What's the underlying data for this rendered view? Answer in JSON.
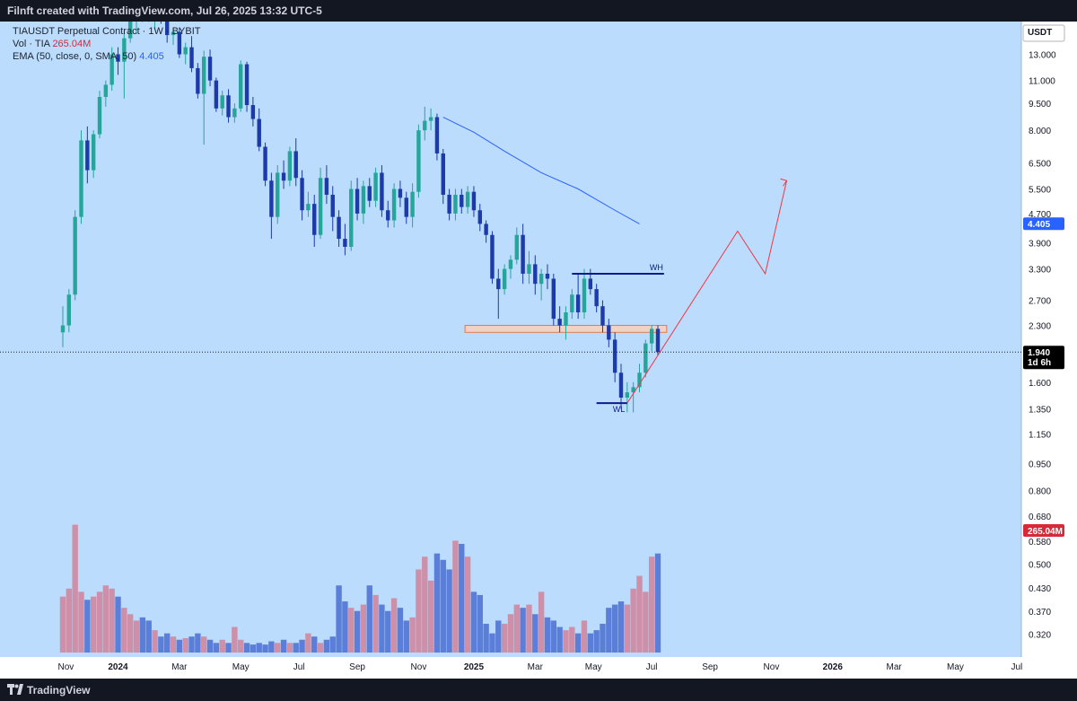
{
  "header": {
    "caption": "Filnft created with TradingView.com, Jul 26, 2025 13:32 UTC-5"
  },
  "legend": {
    "symbol_line": "TIAUSDT Perpetual Contract · 1W · BYBIT",
    "vol_label": "Vol · TIA",
    "vol_value": "265.04M",
    "ema_label": "EMA (50, close, 0, SMA, 50)",
    "ema_value": "4.405"
  },
  "footer": {
    "brand": "TradingView"
  },
  "colors": {
    "background": "#bbdcfc",
    "up_candle": "#26a69a",
    "down_candle": "#1c3aa9",
    "volume_up": "#ce8fa8",
    "volume_down": "#5b7fd8",
    "ema": "#2962ff",
    "projection": "#f23645",
    "level_line": "#0d1a8c",
    "zone_fill": "#f3d2c6",
    "zone_border": "#e07a4f",
    "axis_bg": "#ffffff",
    "last_price_bg": "#000000",
    "volume_badge": "#d6293a",
    "ema_badge": "#2962ff"
  },
  "chart_data": {
    "type": "candlestick",
    "symbol": "TIAUSDT Perpetual Contract",
    "interval": "1W",
    "exchange": "BYBIT",
    "currency": "USDT",
    "y_scale": "log",
    "ylim": [
      0.28,
      17.0
    ],
    "price_ticks": [
      "13.000",
      "11.000",
      "9.500",
      "8.000",
      "6.500",
      "5.500",
      "4.700",
      "3.900",
      "3.300",
      "2.700",
      "2.300",
      "1.600",
      "1.350",
      "1.150",
      "0.950",
      "0.800",
      "0.680",
      "0.580",
      "0.500",
      "0.430",
      "0.370",
      "0.320"
    ],
    "x_ticks": [
      "Nov",
      "2024",
      "Mar",
      "May",
      "Jul",
      "Sep",
      "Nov",
      "2025",
      "Mar",
      "May",
      "Jul",
      "Sep",
      "Nov",
      "2026",
      "Mar",
      "May",
      "Jul"
    ],
    "bars": [
      {
        "o": 2.2,
        "h": 2.6,
        "l": 2.0,
        "c": 2.3
      },
      {
        "o": 2.3,
        "h": 2.9,
        "l": 2.2,
        "c": 2.8
      },
      {
        "o": 2.8,
        "h": 4.8,
        "l": 2.7,
        "c": 4.6
      },
      {
        "o": 4.6,
        "h": 8.0,
        "l": 4.4,
        "c": 7.5
      },
      {
        "o": 7.5,
        "h": 8.2,
        "l": 5.7,
        "c": 6.2
      },
      {
        "o": 6.2,
        "h": 8.0,
        "l": 5.9,
        "c": 7.8
      },
      {
        "o": 7.8,
        "h": 10.3,
        "l": 7.6,
        "c": 9.9
      },
      {
        "o": 9.9,
        "h": 11.0,
        "l": 9.3,
        "c": 10.7
      },
      {
        "o": 10.7,
        "h": 13.6,
        "l": 10.3,
        "c": 13.0
      },
      {
        "o": 13.0,
        "h": 13.6,
        "l": 11.4,
        "c": 12.4
      },
      {
        "o": 12.4,
        "h": 15.0,
        "l": 9.8,
        "c": 14.4
      },
      {
        "o": 14.4,
        "h": 17.0,
        "l": 14.0,
        "c": 16.6
      },
      {
        "o": 16.6,
        "h": 17.2,
        "l": 14.8,
        "c": 16.9
      },
      {
        "o": 16.9,
        "h": 17.2,
        "l": 16.0,
        "c": 16.7
      },
      {
        "o": 16.7,
        "h": 17.2,
        "l": 16.0,
        "c": 16.3
      },
      {
        "o": 16.3,
        "h": 17.0,
        "l": 15.3,
        "c": 16.8
      },
      {
        "o": 16.8,
        "h": 17.2,
        "l": 15.8,
        "c": 16.4
      },
      {
        "o": 16.4,
        "h": 17.0,
        "l": 14.0,
        "c": 14.7
      },
      {
        "o": 14.7,
        "h": 15.3,
        "l": 13.8,
        "c": 15.0
      },
      {
        "o": 15.0,
        "h": 15.4,
        "l": 12.7,
        "c": 13.0
      },
      {
        "o": 13.0,
        "h": 14.0,
        "l": 12.2,
        "c": 13.6
      },
      {
        "o": 13.6,
        "h": 14.6,
        "l": 11.6,
        "c": 11.9
      },
      {
        "o": 11.9,
        "h": 12.3,
        "l": 9.8,
        "c": 10.1
      },
      {
        "o": 10.1,
        "h": 13.3,
        "l": 7.3,
        "c": 12.8
      },
      {
        "o": 12.8,
        "h": 13.4,
        "l": 10.6,
        "c": 11.0
      },
      {
        "o": 11.0,
        "h": 11.2,
        "l": 9.0,
        "c": 9.2
      },
      {
        "o": 9.2,
        "h": 10.3,
        "l": 8.8,
        "c": 10.0
      },
      {
        "o": 10.0,
        "h": 10.4,
        "l": 8.4,
        "c": 8.7
      },
      {
        "o": 8.7,
        "h": 9.5,
        "l": 8.4,
        "c": 9.2
      },
      {
        "o": 9.2,
        "h": 12.5,
        "l": 9.0,
        "c": 12.2
      },
      {
        "o": 12.2,
        "h": 12.4,
        "l": 9.0,
        "c": 9.4
      },
      {
        "o": 9.4,
        "h": 9.9,
        "l": 8.2,
        "c": 8.6
      },
      {
        "o": 8.6,
        "h": 9.2,
        "l": 7.0,
        "c": 7.2
      },
      {
        "o": 7.2,
        "h": 7.4,
        "l": 5.6,
        "c": 5.8
      },
      {
        "o": 5.8,
        "h": 6.1,
        "l": 4.0,
        "c": 4.6
      },
      {
        "o": 4.6,
        "h": 6.4,
        "l": 4.4,
        "c": 6.1
      },
      {
        "o": 6.1,
        "h": 6.6,
        "l": 5.5,
        "c": 5.8
      },
      {
        "o": 5.8,
        "h": 7.2,
        "l": 5.6,
        "c": 7.0
      },
      {
        "o": 7.0,
        "h": 7.6,
        "l": 5.6,
        "c": 5.9
      },
      {
        "o": 5.9,
        "h": 6.2,
        "l": 4.5,
        "c": 4.8
      },
      {
        "o": 4.8,
        "h": 5.4,
        "l": 4.6,
        "c": 5.0
      },
      {
        "o": 5.0,
        "h": 5.3,
        "l": 3.8,
        "c": 4.1
      },
      {
        "o": 4.1,
        "h": 6.3,
        "l": 4.0,
        "c": 5.9
      },
      {
        "o": 5.9,
        "h": 6.4,
        "l": 5.0,
        "c": 5.3
      },
      {
        "o": 5.3,
        "h": 5.6,
        "l": 4.2,
        "c": 4.6
      },
      {
        "o": 4.6,
        "h": 4.8,
        "l": 3.8,
        "c": 4.0
      },
      {
        "o": 4.0,
        "h": 4.4,
        "l": 3.6,
        "c": 3.8
      },
      {
        "o": 3.8,
        "h": 5.8,
        "l": 3.7,
        "c": 5.5
      },
      {
        "o": 5.5,
        "h": 5.9,
        "l": 4.5,
        "c": 4.7
      },
      {
        "o": 4.7,
        "h": 5.8,
        "l": 4.4,
        "c": 5.6
      },
      {
        "o": 5.6,
        "h": 5.9,
        "l": 4.9,
        "c": 5.1
      },
      {
        "o": 5.1,
        "h": 6.3,
        "l": 4.9,
        "c": 6.1
      },
      {
        "o": 6.1,
        "h": 6.4,
        "l": 4.6,
        "c": 4.8
      },
      {
        "o": 4.8,
        "h": 5.1,
        "l": 4.3,
        "c": 4.5
      },
      {
        "o": 4.5,
        "h": 5.7,
        "l": 4.3,
        "c": 5.5
      },
      {
        "o": 5.5,
        "h": 5.8,
        "l": 4.9,
        "c": 5.2
      },
      {
        "o": 5.2,
        "h": 5.4,
        "l": 4.4,
        "c": 4.6
      },
      {
        "o": 4.6,
        "h": 5.7,
        "l": 4.3,
        "c": 5.4
      },
      {
        "o": 5.4,
        "h": 8.3,
        "l": 5.2,
        "c": 8.0
      },
      {
        "o": 8.0,
        "h": 9.3,
        "l": 7.5,
        "c": 8.5
      },
      {
        "o": 8.5,
        "h": 9.2,
        "l": 8.0,
        "c": 8.7
      },
      {
        "o": 8.7,
        "h": 8.9,
        "l": 6.6,
        "c": 6.9
      },
      {
        "o": 6.9,
        "h": 7.1,
        "l": 5.0,
        "c": 5.3
      },
      {
        "o": 5.3,
        "h": 5.5,
        "l": 4.5,
        "c": 4.7
      },
      {
        "o": 4.7,
        "h": 5.5,
        "l": 4.5,
        "c": 5.3
      },
      {
        "o": 5.3,
        "h": 5.5,
        "l": 4.7,
        "c": 4.9
      },
      {
        "o": 4.9,
        "h": 5.6,
        "l": 4.7,
        "c": 5.4
      },
      {
        "o": 5.4,
        "h": 5.6,
        "l": 4.6,
        "c": 4.8
      },
      {
        "o": 4.8,
        "h": 5.0,
        "l": 4.2,
        "c": 4.4
      },
      {
        "o": 4.4,
        "h": 4.5,
        "l": 3.9,
        "c": 4.1
      },
      {
        "o": 4.1,
        "h": 4.2,
        "l": 3.0,
        "c": 3.1
      },
      {
        "o": 3.1,
        "h": 3.3,
        "l": 2.4,
        "c": 2.9
      },
      {
        "o": 2.9,
        "h": 3.4,
        "l": 2.8,
        "c": 3.3
      },
      {
        "o": 3.3,
        "h": 3.6,
        "l": 3.1,
        "c": 3.5
      },
      {
        "o": 3.5,
        "h": 4.3,
        "l": 3.4,
        "c": 4.1
      },
      {
        "o": 4.1,
        "h": 4.4,
        "l": 3.0,
        "c": 3.2
      },
      {
        "o": 3.2,
        "h": 3.7,
        "l": 3.0,
        "c": 3.4
      },
      {
        "o": 3.4,
        "h": 3.6,
        "l": 2.8,
        "c": 3.0
      },
      {
        "o": 3.0,
        "h": 3.3,
        "l": 2.7,
        "c": 3.2
      },
      {
        "o": 3.2,
        "h": 3.4,
        "l": 2.9,
        "c": 3.1
      },
      {
        "o": 3.1,
        "h": 3.2,
        "l": 2.3,
        "c": 2.4
      },
      {
        "o": 2.4,
        "h": 2.6,
        "l": 2.2,
        "c": 2.3
      },
      {
        "o": 2.3,
        "h": 2.6,
        "l": 2.1,
        "c": 2.5
      },
      {
        "o": 2.5,
        "h": 2.9,
        "l": 2.4,
        "c": 2.8
      },
      {
        "o": 2.8,
        "h": 3.2,
        "l": 2.4,
        "c": 2.5
      },
      {
        "o": 2.5,
        "h": 3.3,
        "l": 2.4,
        "c": 3.1
      },
      {
        "o": 3.1,
        "h": 3.3,
        "l": 2.8,
        "c": 2.9
      },
      {
        "o": 2.9,
        "h": 3.0,
        "l": 2.5,
        "c": 2.6
      },
      {
        "o": 2.6,
        "h": 2.7,
        "l": 2.2,
        "c": 2.3
      },
      {
        "o": 2.3,
        "h": 2.4,
        "l": 2.0,
        "c": 2.1
      },
      {
        "o": 2.1,
        "h": 2.2,
        "l": 1.6,
        "c": 1.7
      },
      {
        "o": 1.7,
        "h": 1.8,
        "l": 1.35,
        "c": 1.45
      },
      {
        "o": 1.45,
        "h": 1.6,
        "l": 1.32,
        "c": 1.5
      },
      {
        "o": 1.5,
        "h": 1.6,
        "l": 1.32,
        "c": 1.55
      },
      {
        "o": 1.55,
        "h": 1.8,
        "l": 1.5,
        "c": 1.7
      },
      {
        "o": 1.7,
        "h": 2.1,
        "l": 1.65,
        "c": 2.05
      },
      {
        "o": 2.05,
        "h": 2.3,
        "l": 1.95,
        "c": 2.25
      },
      {
        "o": 2.25,
        "h": 2.3,
        "l": 1.9,
        "c": 1.94
      }
    ],
    "volume_relative": [
      0.35,
      0.4,
      0.8,
      0.38,
      0.33,
      0.35,
      0.38,
      0.42,
      0.4,
      0.35,
      0.28,
      0.24,
      0.2,
      0.22,
      0.2,
      0.14,
      0.1,
      0.12,
      0.1,
      0.08,
      0.09,
      0.1,
      0.12,
      0.1,
      0.08,
      0.06,
      0.08,
      0.06,
      0.16,
      0.08,
      0.06,
      0.05,
      0.06,
      0.05,
      0.07,
      0.06,
      0.08,
      0.06,
      0.06,
      0.08,
      0.12,
      0.1,
      0.06,
      0.08,
      0.1,
      0.42,
      0.32,
      0.28,
      0.26,
      0.3,
      0.42,
      0.36,
      0.3,
      0.26,
      0.34,
      0.28,
      0.2,
      0.22,
      0.52,
      0.6,
      0.45,
      0.62,
      0.58,
      0.52,
      0.7,
      0.68,
      0.6,
      0.38,
      0.36,
      0.18,
      0.12,
      0.2,
      0.18,
      0.24,
      0.3,
      0.28,
      0.3,
      0.24,
      0.38,
      0.22,
      0.2,
      0.16,
      0.14,
      0.16,
      0.12,
      0.2,
      0.12,
      0.14,
      0.18,
      0.28,
      0.3,
      0.32,
      0.3,
      0.4,
      0.48,
      0.38,
      0.6,
      0.62,
      0.55
    ],
    "ema_50": {
      "label": "EMA (50, close, 0, SMA, 50)",
      "value": 4.405,
      "points": [
        {
          "bar": 62,
          "v": 8.7
        },
        {
          "bar": 67,
          "v": 7.9
        },
        {
          "bar": 72,
          "v": 7.0
        },
        {
          "bar": 78,
          "v": 6.1
        },
        {
          "bar": 84,
          "v": 5.5
        },
        {
          "bar": 90,
          "v": 4.8
        },
        {
          "bar": 94,
          "v": 4.4
        }
      ]
    },
    "current_price": "1.940",
    "countdown": "1d 6h",
    "current_volume": "265.04M",
    "levels": [
      {
        "name": "WH",
        "price": 3.2,
        "from_bar": 83,
        "to_bar": 98
      },
      {
        "name": "WL",
        "price": 1.4,
        "from_bar": 87,
        "to_bar": 92
      }
    ],
    "zone": {
      "price_low": 2.2,
      "price_high": 2.3,
      "from_bar": 66,
      "to_bar": 98
    },
    "projection_path_prices": [
      1.4,
      4.2,
      3.2,
      5.8
    ]
  }
}
